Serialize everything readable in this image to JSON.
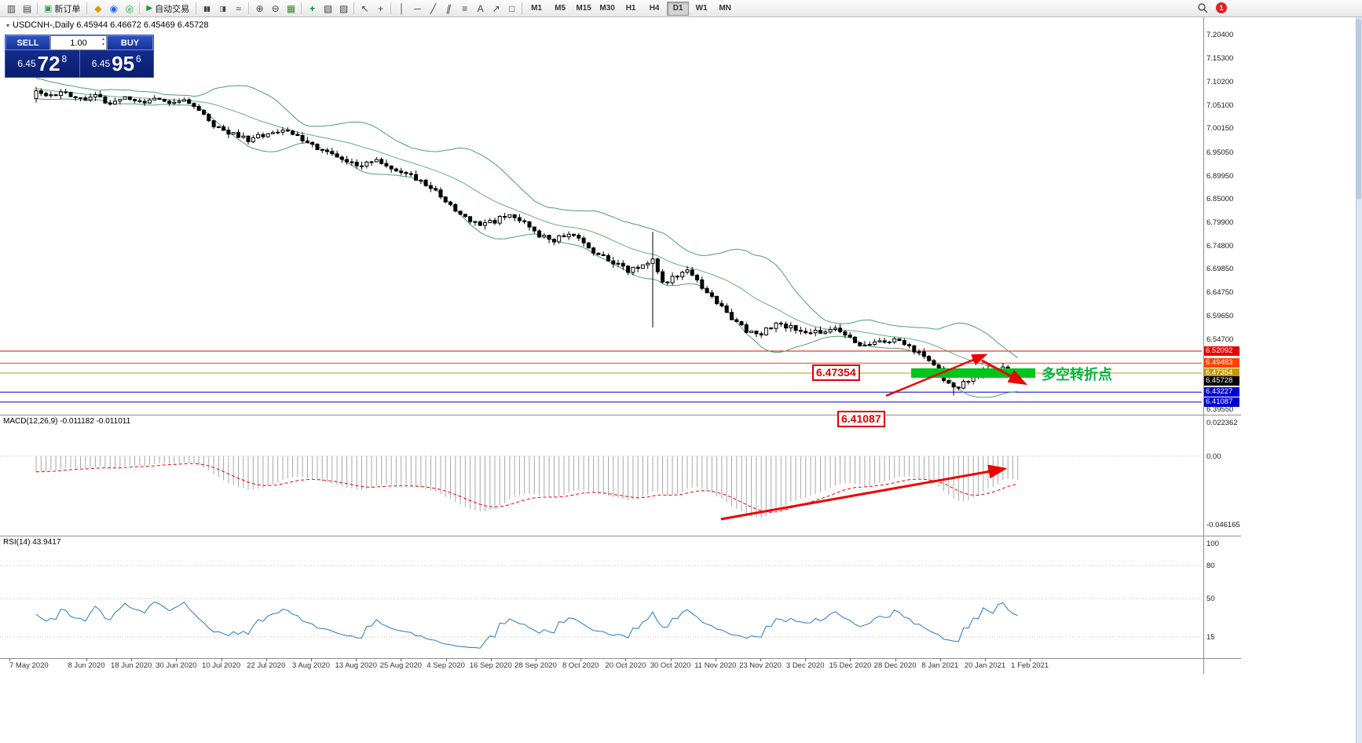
{
  "toolbar": {
    "new_order_label": "新订单",
    "autotrade_label": "自动交易",
    "timeframes": [
      "M1",
      "M5",
      "M15",
      "M30",
      "H1",
      "H4",
      "D1",
      "W1",
      "MN"
    ],
    "active_timeframe": "D1",
    "notification_count": "1"
  },
  "icons": {
    "new_chart": "▥",
    "profiles": "▤",
    "new_order": "▣",
    "quotes": "◆",
    "market_watch": "◉",
    "signals": "◎",
    "autoplay": "▶",
    "bar_chart": "▮▮",
    "candle_chart": "▯▮",
    "line_chart": "≈",
    "zoom_in": "⊕",
    "zoom_out": "⊖",
    "grid": "▦",
    "indicators": "+",
    "periods": "▧",
    "templates": "▨",
    "cursor": "↖",
    "crosshair": "+",
    "vline": "│",
    "hline": "─",
    "trendline": "╱",
    "channel": "∥",
    "fibonacci": "≡",
    "text_tool": "A",
    "arrow_tool": "↗",
    "shapes": "□",
    "volume_up": "▴",
    "volume_down": "▾",
    "collapse": "▾"
  },
  "trade_panel": {
    "sell_label": "SELL",
    "buy_label": "BUY",
    "volume": "1.00",
    "sell_price_main": "6.45",
    "sell_price_big": "72",
    "sell_price_sup": "8",
    "buy_price_main": "6.45",
    "buy_price_big": "95",
    "buy_price_sup": "6"
  },
  "chart": {
    "title": "USDCNH-,Daily  6.45944 6.46672 6.45469 6.45728",
    "bollinger_color": "#4c9f72",
    "price_axis": [
      "7.20400",
      "7.15300",
      "7.10200",
      "7.05100",
      "7.00150",
      "6.95050",
      "6.89950",
      "6.85000",
      "6.79900",
      "6.74800",
      "6.69850",
      "6.64750",
      "6.59650",
      "6.54700",
      "6.39550"
    ],
    "hlines": [
      {
        "price": "6.52092",
        "color": "#e80000"
      },
      {
        "price": "6.49483",
        "color": "#ff4000"
      },
      {
        "price": "6.47354",
        "color": "#c79a00"
      },
      {
        "price": "6.45728",
        "color": "#000000",
        "line": false
      },
      {
        "price": "6.43227",
        "color": "#0000cd"
      },
      {
        "price": "6.41087",
        "color": "#0000cd"
      }
    ],
    "annotations": {
      "resistance_label": "6.47354",
      "support_label": "6.41087",
      "zone_text": "多空转折点",
      "zone_color": "#00c41e"
    },
    "dates": [
      "7 May 2020",
      "8 Jun 2020",
      "18 Jun 2020",
      "30 Jun 2020",
      "10 Jul 2020",
      "22 Jul 2020",
      "3 Aug 2020",
      "13 Aug 2020",
      "25 Aug 2020",
      "4 Sep 2020",
      "16 Sep 2020",
      "28 Sep 2020",
      "8 Oct 2020",
      "20 Oct 2020",
      "30 Oct 2020",
      "11 Nov 2020",
      "23 Nov 2020",
      "3 Dec 2020",
      "15 Dec 2020",
      "28 Dec 2020",
      "8 Jan 2021",
      "20 Jan 2021",
      "1 Feb 2021"
    ]
  },
  "macd": {
    "label": "MACD(12,26,9) -0.011182 -0.011011",
    "axis": [
      "0.022362",
      "0.00",
      "-0.046165"
    ]
  },
  "rsi": {
    "label": "RSI(14) 43.9417",
    "axis": [
      "100",
      "80",
      "50",
      "15"
    ]
  },
  "chart_data": {
    "type": "candlestick",
    "symbol": "USDCNH",
    "period": "Daily",
    "last_ohlc": {
      "open": "6.45944",
      "high": "6.46672",
      "low": "6.45469",
      "close": "6.45728"
    },
    "indicators": [
      "Bollinger Bands",
      "MACD(12,26,9)",
      "RSI(14)"
    ],
    "price_range": [
      6.3955,
      7.204
    ],
    "price_path": [
      [
        0,
        7.085
      ],
      [
        3,
        7.07
      ],
      [
        6,
        7.082
      ],
      [
        9,
        7.062
      ],
      [
        12,
        7.075
      ],
      [
        15,
        7.052
      ],
      [
        18,
        7.068
      ],
      [
        21,
        7.055
      ],
      [
        24,
        7.07
      ],
      [
        27,
        7.058
      ],
      [
        30,
        7.065
      ],
      [
        33,
        7.04
      ],
      [
        36,
        7.005
      ],
      [
        39,
        6.992
      ],
      [
        43,
        6.978
      ],
      [
        47,
        6.988
      ],
      [
        50,
        6.998
      ],
      [
        53,
        6.985
      ],
      [
        56,
        6.962
      ],
      [
        60,
        6.948
      ],
      [
        63,
        6.93
      ],
      [
        66,
        6.922
      ],
      [
        69,
        6.932
      ],
      [
        72,
        6.915
      ],
      [
        75,
        6.905
      ],
      [
        78,
        6.888
      ],
      [
        81,
        6.868
      ],
      [
        84,
        6.835
      ],
      [
        87,
        6.812
      ],
      [
        90,
        6.792
      ],
      [
        93,
        6.802
      ],
      [
        96,
        6.818
      ],
      [
        99,
        6.8
      ],
      [
        102,
        6.772
      ],
      [
        105,
        6.758
      ],
      [
        108,
        6.778
      ],
      [
        111,
        6.752
      ],
      [
        114,
        6.728
      ],
      [
        117,
        6.712
      ],
      [
        120,
        6.695
      ],
      [
        123,
        6.705
      ],
      [
        125,
        6.72
      ],
      [
        127,
        6.665
      ],
      [
        129,
        6.678
      ],
      [
        132,
        6.698
      ],
      [
        135,
        6.658
      ],
      [
        138,
        6.625
      ],
      [
        141,
        6.592
      ],
      [
        144,
        6.565
      ],
      [
        147,
        6.558
      ],
      [
        150,
        6.582
      ],
      [
        153,
        6.572
      ],
      [
        156,
        6.557
      ],
      [
        159,
        6.562
      ],
      [
        162,
        6.572
      ],
      [
        165,
        6.548
      ],
      [
        168,
        6.532
      ],
      [
        171,
        6.54
      ],
      [
        174,
        6.546
      ],
      [
        177,
        6.527
      ],
      [
        180,
        6.512
      ],
      [
        182,
        6.495
      ],
      [
        184,
        6.462
      ],
      [
        186,
        6.44
      ],
      [
        188,
        6.452
      ],
      [
        190,
        6.463
      ],
      [
        192,
        6.477
      ],
      [
        194,
        6.468
      ],
      [
        196,
        6.487
      ],
      [
        198,
        6.463
      ],
      [
        199,
        6.457
      ]
    ],
    "wick_overrides": [
      {
        "index": 125,
        "high": 6.778,
        "low": 6.572
      },
      {
        "index": 186,
        "low": 6.425
      },
      {
        "index": 196,
        "high": 6.495
      }
    ]
  }
}
